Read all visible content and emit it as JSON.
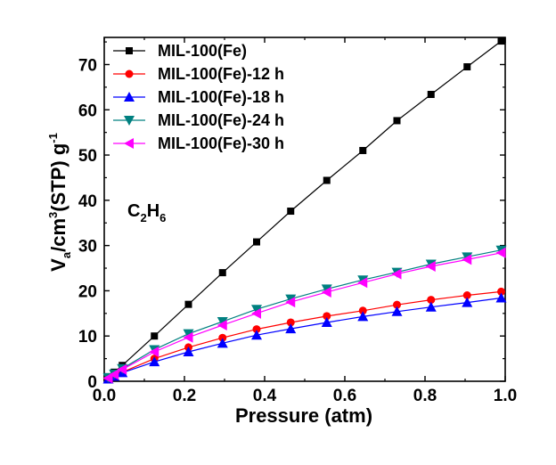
{
  "chart_data": {
    "type": "line",
    "xlabel": "Pressure (atm)",
    "ylabel": {
      "main": "V",
      "sub": "a",
      "mid": "/cm",
      "sup1": "3",
      "after": "(STP) g",
      "sup2": "-1"
    },
    "annotation": {
      "c": "C",
      "n1": "2",
      "h": "H",
      "n2": "6"
    },
    "xlim": [
      0,
      1.0
    ],
    "ylim": [
      0,
      76
    ],
    "xticks": [
      0.0,
      0.2,
      0.4,
      0.6,
      0.8,
      1.0
    ],
    "xtick_labels": [
      "0.0",
      "0.2",
      "0.4",
      "0.6",
      "0.8",
      "1.0"
    ],
    "yticks": [
      0,
      10,
      20,
      30,
      40,
      50,
      60,
      70
    ],
    "ytick_labels": [
      "0",
      "10",
      "20",
      "30",
      "40",
      "50",
      "60",
      "70"
    ],
    "legend_position": "top-left",
    "x": [
      0.01,
      0.025,
      0.045,
      0.125,
      0.21,
      0.295,
      0.38,
      0.465,
      0.555,
      0.645,
      0.73,
      0.815,
      0.905,
      0.99
    ],
    "series": [
      {
        "name": "MIL-100(Fe)",
        "color": "#000000",
        "marker": "square",
        "values": [
          1.0,
          2.0,
          3.5,
          10.0,
          17.0,
          24.0,
          30.8,
          37.6,
          44.4,
          51.0,
          57.6,
          63.4,
          69.5,
          75.2
        ]
      },
      {
        "name": "MIL-100(Fe)-12 h",
        "color": "#ff0000",
        "marker": "circle",
        "values": [
          0.6,
          1.2,
          2.0,
          5.0,
          7.5,
          9.6,
          11.5,
          13.0,
          14.4,
          15.6,
          16.9,
          18.0,
          19.0,
          19.8
        ]
      },
      {
        "name": "MIL-100(Fe)-18 h",
        "color": "#0000ff",
        "marker": "triangle-up",
        "values": [
          0.5,
          1.1,
          1.9,
          4.3,
          6.5,
          8.4,
          10.2,
          11.6,
          13.0,
          14.3,
          15.4,
          16.4,
          17.4,
          18.4
        ]
      },
      {
        "name": "MIL-100(Fe)-24 h",
        "color": "#008080",
        "marker": "triangle-down",
        "values": [
          0.8,
          1.6,
          2.8,
          7.0,
          10.5,
          13.2,
          15.9,
          18.2,
          20.4,
          22.4,
          24.1,
          25.9,
          27.5,
          29.0
        ]
      },
      {
        "name": "MIL-100(Fe)-30 h",
        "color": "#ff00ff",
        "marker": "triangle-left",
        "values": [
          0.7,
          1.5,
          2.6,
          6.5,
          9.7,
          12.4,
          15.0,
          17.5,
          19.7,
          21.8,
          23.7,
          25.4,
          26.9,
          28.4
        ]
      }
    ]
  }
}
